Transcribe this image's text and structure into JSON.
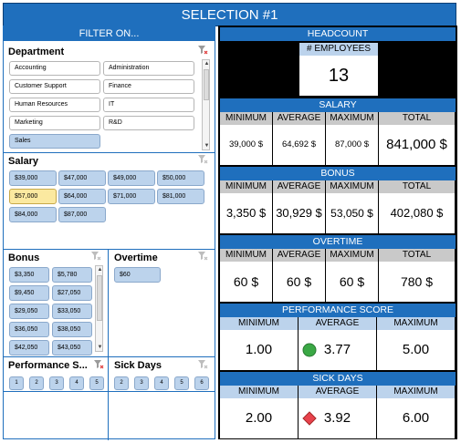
{
  "title": "SELECTION #1",
  "filter_header": "FILTER ON...",
  "department": {
    "title": "Department",
    "items": [
      "Accounting",
      "Administration",
      "Customer Support",
      "Finance",
      "Human Resources",
      "IT",
      "Marketing",
      "R&D",
      "Sales"
    ],
    "selected": "Sales"
  },
  "salary_slicer": {
    "title": "Salary",
    "items": [
      "$39,000",
      "$47,000",
      "$49,000",
      "$50,000",
      "$57,000",
      "$64,000",
      "$71,000",
      "$81,000",
      "$84,000",
      "$87,000"
    ],
    "selected": "$57,000"
  },
  "bonus_slicer": {
    "title": "Bonus",
    "items": [
      "$3,350",
      "$5,780",
      "$9,450",
      "$27,050",
      "$29,050",
      "$33,050",
      "$36,050",
      "$38,050",
      "$42,050",
      "$43,050"
    ]
  },
  "overtime_slicer": {
    "title": "Overtime",
    "items": [
      "$60"
    ]
  },
  "performance_slicer": {
    "title": "Performance S...",
    "items": [
      "1",
      "2",
      "3",
      "4",
      "5"
    ]
  },
  "sickdays_slicer": {
    "title": "Sick Days",
    "items": [
      "2",
      "3",
      "4",
      "5",
      "6"
    ]
  },
  "headcount": {
    "header": "HEADCOUNT",
    "label": "# EMPLOYEES",
    "value": "13"
  },
  "salary": {
    "header": "SALARY",
    "cols": [
      "MINIMUM",
      "AVERAGE",
      "MAXIMUM",
      "TOTAL"
    ],
    "values": [
      "39,000 $",
      "64,692 $",
      "87,000 $",
      "841,000 $"
    ]
  },
  "bonus": {
    "header": "BONUS",
    "cols": [
      "MINIMUM",
      "AVERAGE",
      "MAXIMUM",
      "TOTAL"
    ],
    "values": [
      "3,350 $",
      "30,929 $",
      "53,050 $",
      "402,080 $"
    ]
  },
  "overtime": {
    "header": "OVERTIME",
    "cols": [
      "MINIMUM",
      "AVERAGE",
      "MAXIMUM",
      "TOTAL"
    ],
    "values": [
      "60 $",
      "60 $",
      "60 $",
      "780 $"
    ]
  },
  "performance": {
    "header": "PERFORMANCE SCORE",
    "cols": [
      "MINIMUM",
      "AVERAGE",
      "MAXIMUM"
    ],
    "values": [
      "1.00",
      "3.77",
      "5.00"
    ],
    "indicator": "green-circle-icon",
    "indicator_color": "#3aa845"
  },
  "sickdays": {
    "header": "SICK DAYS",
    "cols": [
      "MINIMUM",
      "AVERAGE",
      "MAXIMUM"
    ],
    "values": [
      "2.00",
      "3.92",
      "6.00"
    ],
    "indicator": "red-diamond-icon",
    "indicator_color": "#e8424c"
  },
  "colors": {
    "accent": "#1f6fbd",
    "chip": "#bcd3ec",
    "selected": "#fbe9a0"
  }
}
